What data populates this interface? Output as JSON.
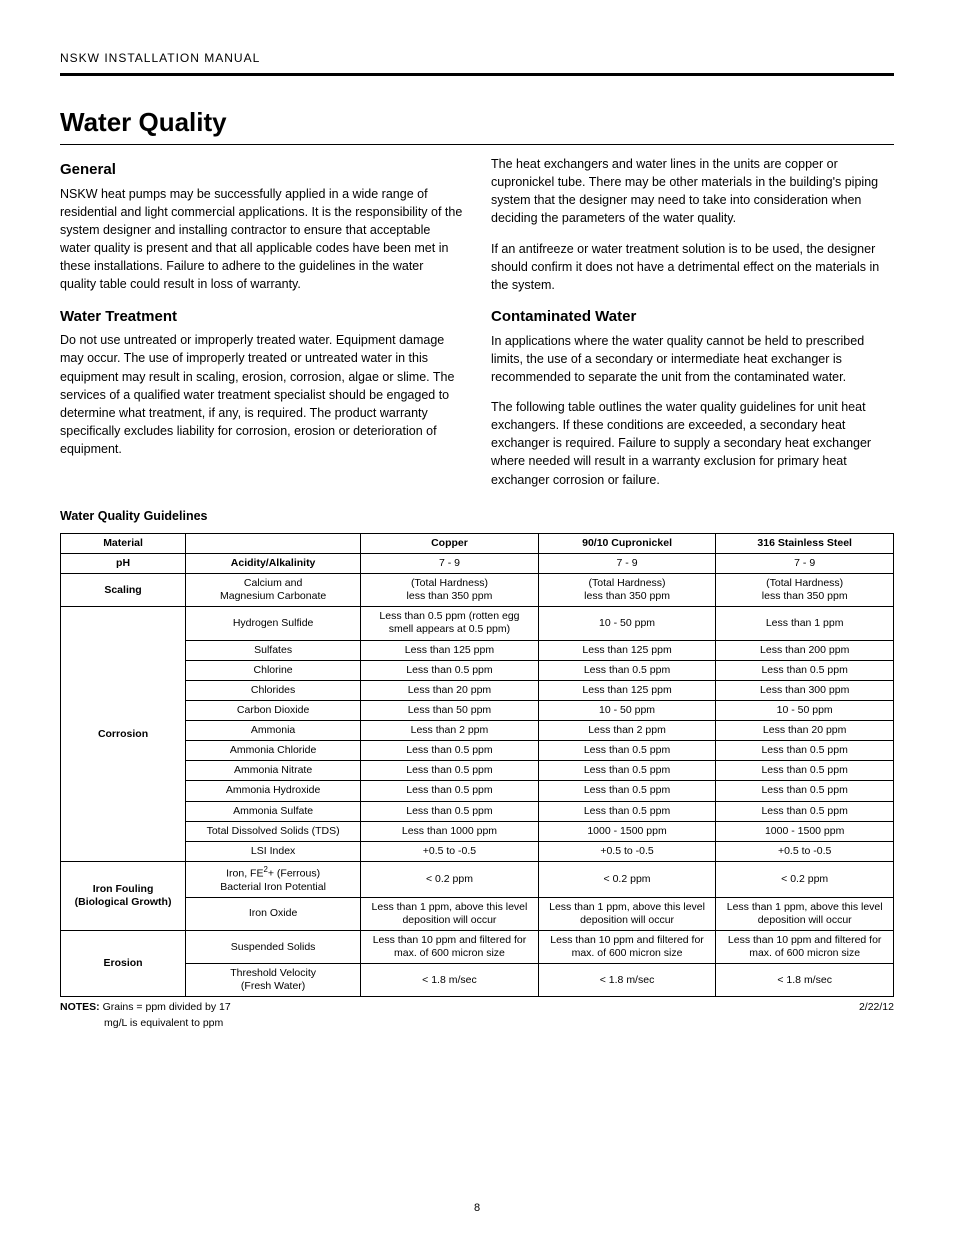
{
  "header": {
    "running": "NSKW INSTALLATION MANUAL"
  },
  "title": "Water Quality",
  "sections": {
    "general": {
      "heading": "General",
      "p1": "NSKW heat pumps may be successfully applied in a wide range of residential and light commercial applications. It is the responsibility of the system designer and installing contractor to ensure that acceptable water quality is present and that all applicable codes have been met in these installations. Failure to adhere to the guidelines in the water quality table could result in loss of warranty."
    },
    "treatment": {
      "heading": "Water Treatment",
      "p1": "Do not use untreated or improperly treated water. Equipment damage may occur. The use of improperly treated or untreated water in this equipment may result in scaling, erosion, corrosion, algae or slime. The services of a qualified water treatment specialist should be engaged to determine what treatment, if any, is required. The product warranty specifically excludes liability for corrosion, erosion or deterioration of equipment.",
      "p2": "The heat exchangers and water lines in the units are copper or cupronickel tube. There may be other materials in the building's piping system that the designer may need to take into consideration when deciding the parameters of the water quality.",
      "p3": "If an antifreeze or water treatment solution is to be used, the designer should confirm it does not have a detrimental effect on the materials in the system."
    },
    "contaminated": {
      "heading": "Contaminated Water",
      "p1": "In applications where the water quality cannot be held to prescribed limits, the use of a secondary or intermediate heat exchanger is recommended to separate the unit from the contaminated water.",
      "p2": "The following table outlines the water quality guidelines for unit heat exchangers. If these conditions are exceeded, a secondary heat exchanger is required. Failure to supply a secondary heat exchanger where needed will result in a warranty exclusion for primary heat exchanger corrosion or failure."
    }
  },
  "table": {
    "title": "Water Quality Guidelines",
    "head": {
      "c1": "Material",
      "c2": "",
      "c3": "Copper",
      "c4": "90/10 Cupronickel",
      "c5": "316 Stainless Steel"
    },
    "ph": {
      "label": "pH",
      "param": "Acidity/Alkalinity",
      "v": [
        "7 - 9",
        "7 - 9",
        "7 - 9"
      ]
    },
    "scaling": {
      "label": "Scaling",
      "param_l1": "Calcium and",
      "param_l2": "Magnesium Carbonate",
      "v_l1": "(Total Hardness)",
      "v_l2": "less than 350 ppm"
    },
    "corrosion": {
      "label": "Corrosion",
      "rows": [
        {
          "param": "Hydrogen Sulfide",
          "v": [
            "Less than 0.5 ppm (rotten egg smell appears at 0.5 ppm)",
            "10 - 50 ppm",
            "Less than 1 ppm"
          ]
        },
        {
          "param": "Sulfates",
          "v": [
            "Less than 125 ppm",
            "Less than 125 ppm",
            "Less than 200 ppm"
          ]
        },
        {
          "param": "Chlorine",
          "v": [
            "Less than 0.5 ppm",
            "Less than 0.5 ppm",
            "Less than 0.5 ppm"
          ]
        },
        {
          "param": "Chlorides",
          "v": [
            "Less than 20 ppm",
            "Less than 125 ppm",
            "Less than 300 ppm"
          ]
        },
        {
          "param": "Carbon Dioxide",
          "v": [
            "Less than 50 ppm",
            "10 - 50 ppm",
            "10 - 50 ppm"
          ]
        },
        {
          "param": "Ammonia",
          "v": [
            "Less than 2 ppm",
            "Less than 2 ppm",
            "Less than 20 ppm"
          ]
        },
        {
          "param": "Ammonia Chloride",
          "v": [
            "Less than 0.5 ppm",
            "Less than 0.5 ppm",
            "Less than 0.5 ppm"
          ]
        },
        {
          "param": "Ammonia Nitrate",
          "v": [
            "Less than 0.5 ppm",
            "Less than 0.5 ppm",
            "Less than 0.5 ppm"
          ]
        },
        {
          "param": "Ammonia Hydroxide",
          "v": [
            "Less than 0.5 ppm",
            "Less than 0.5 ppm",
            "Less than 0.5 ppm"
          ]
        },
        {
          "param": "Ammonia Sulfate",
          "v": [
            "Less than 0.5 ppm",
            "Less than 0.5 ppm",
            "Less than 0.5 ppm"
          ]
        },
        {
          "param": "Total Dissolved Solids (TDS)",
          "v": [
            "Less than 1000 ppm",
            "1000 - 1500 ppm",
            "1000 - 1500 ppm"
          ]
        },
        {
          "param": "LSI Index",
          "v": [
            "+0.5 to -0.5",
            "+0.5 to -0.5",
            "+0.5 to -0.5"
          ]
        }
      ]
    },
    "ironfouling": {
      "label_l1": "Iron Fouling",
      "label_l2": "(Biological Growth)",
      "row1": {
        "param_html": "Iron, FE<sup>2</sup>+ (Ferrous)<br>Bacterial Iron Potential",
        "v": [
          "< 0.2 ppm",
          "< 0.2 ppm",
          "< 0.2 ppm"
        ]
      },
      "row2": {
        "param": "Iron Oxide",
        "v": [
          "Less than 1 ppm, above this level deposition will occur",
          "Less than 1 ppm, above this level deposition will occur",
          "Less than 1 ppm, above this level deposition will occur"
        ]
      }
    },
    "erosion": {
      "label": "Erosion",
      "row1": {
        "param": "Suspended Solids",
        "v": [
          "Less than 10 ppm and filtered for max. of 600 micron size",
          "Less than 10 ppm and filtered for max. of 600 micron size",
          "Less than 10 ppm and filtered for max. of 600 micron size"
        ]
      },
      "row2": {
        "param_l1": "Threshold Velocity",
        "param_l2": "(Fresh Water)",
        "v": [
          "< 1.8 m/sec",
          "< 1.8 m/sec",
          "< 1.8 m/sec"
        ]
      }
    }
  },
  "notes": {
    "label": "NOTES:",
    "n1": "Grains = ppm divided by 17",
    "n2": "mg/L is equivalent to ppm",
    "date": "2/22/12"
  },
  "page_number": "8",
  "style": {
    "col_widths": [
      "15%",
      "21%",
      "21.3%",
      "21.3%",
      "21.3%"
    ]
  }
}
